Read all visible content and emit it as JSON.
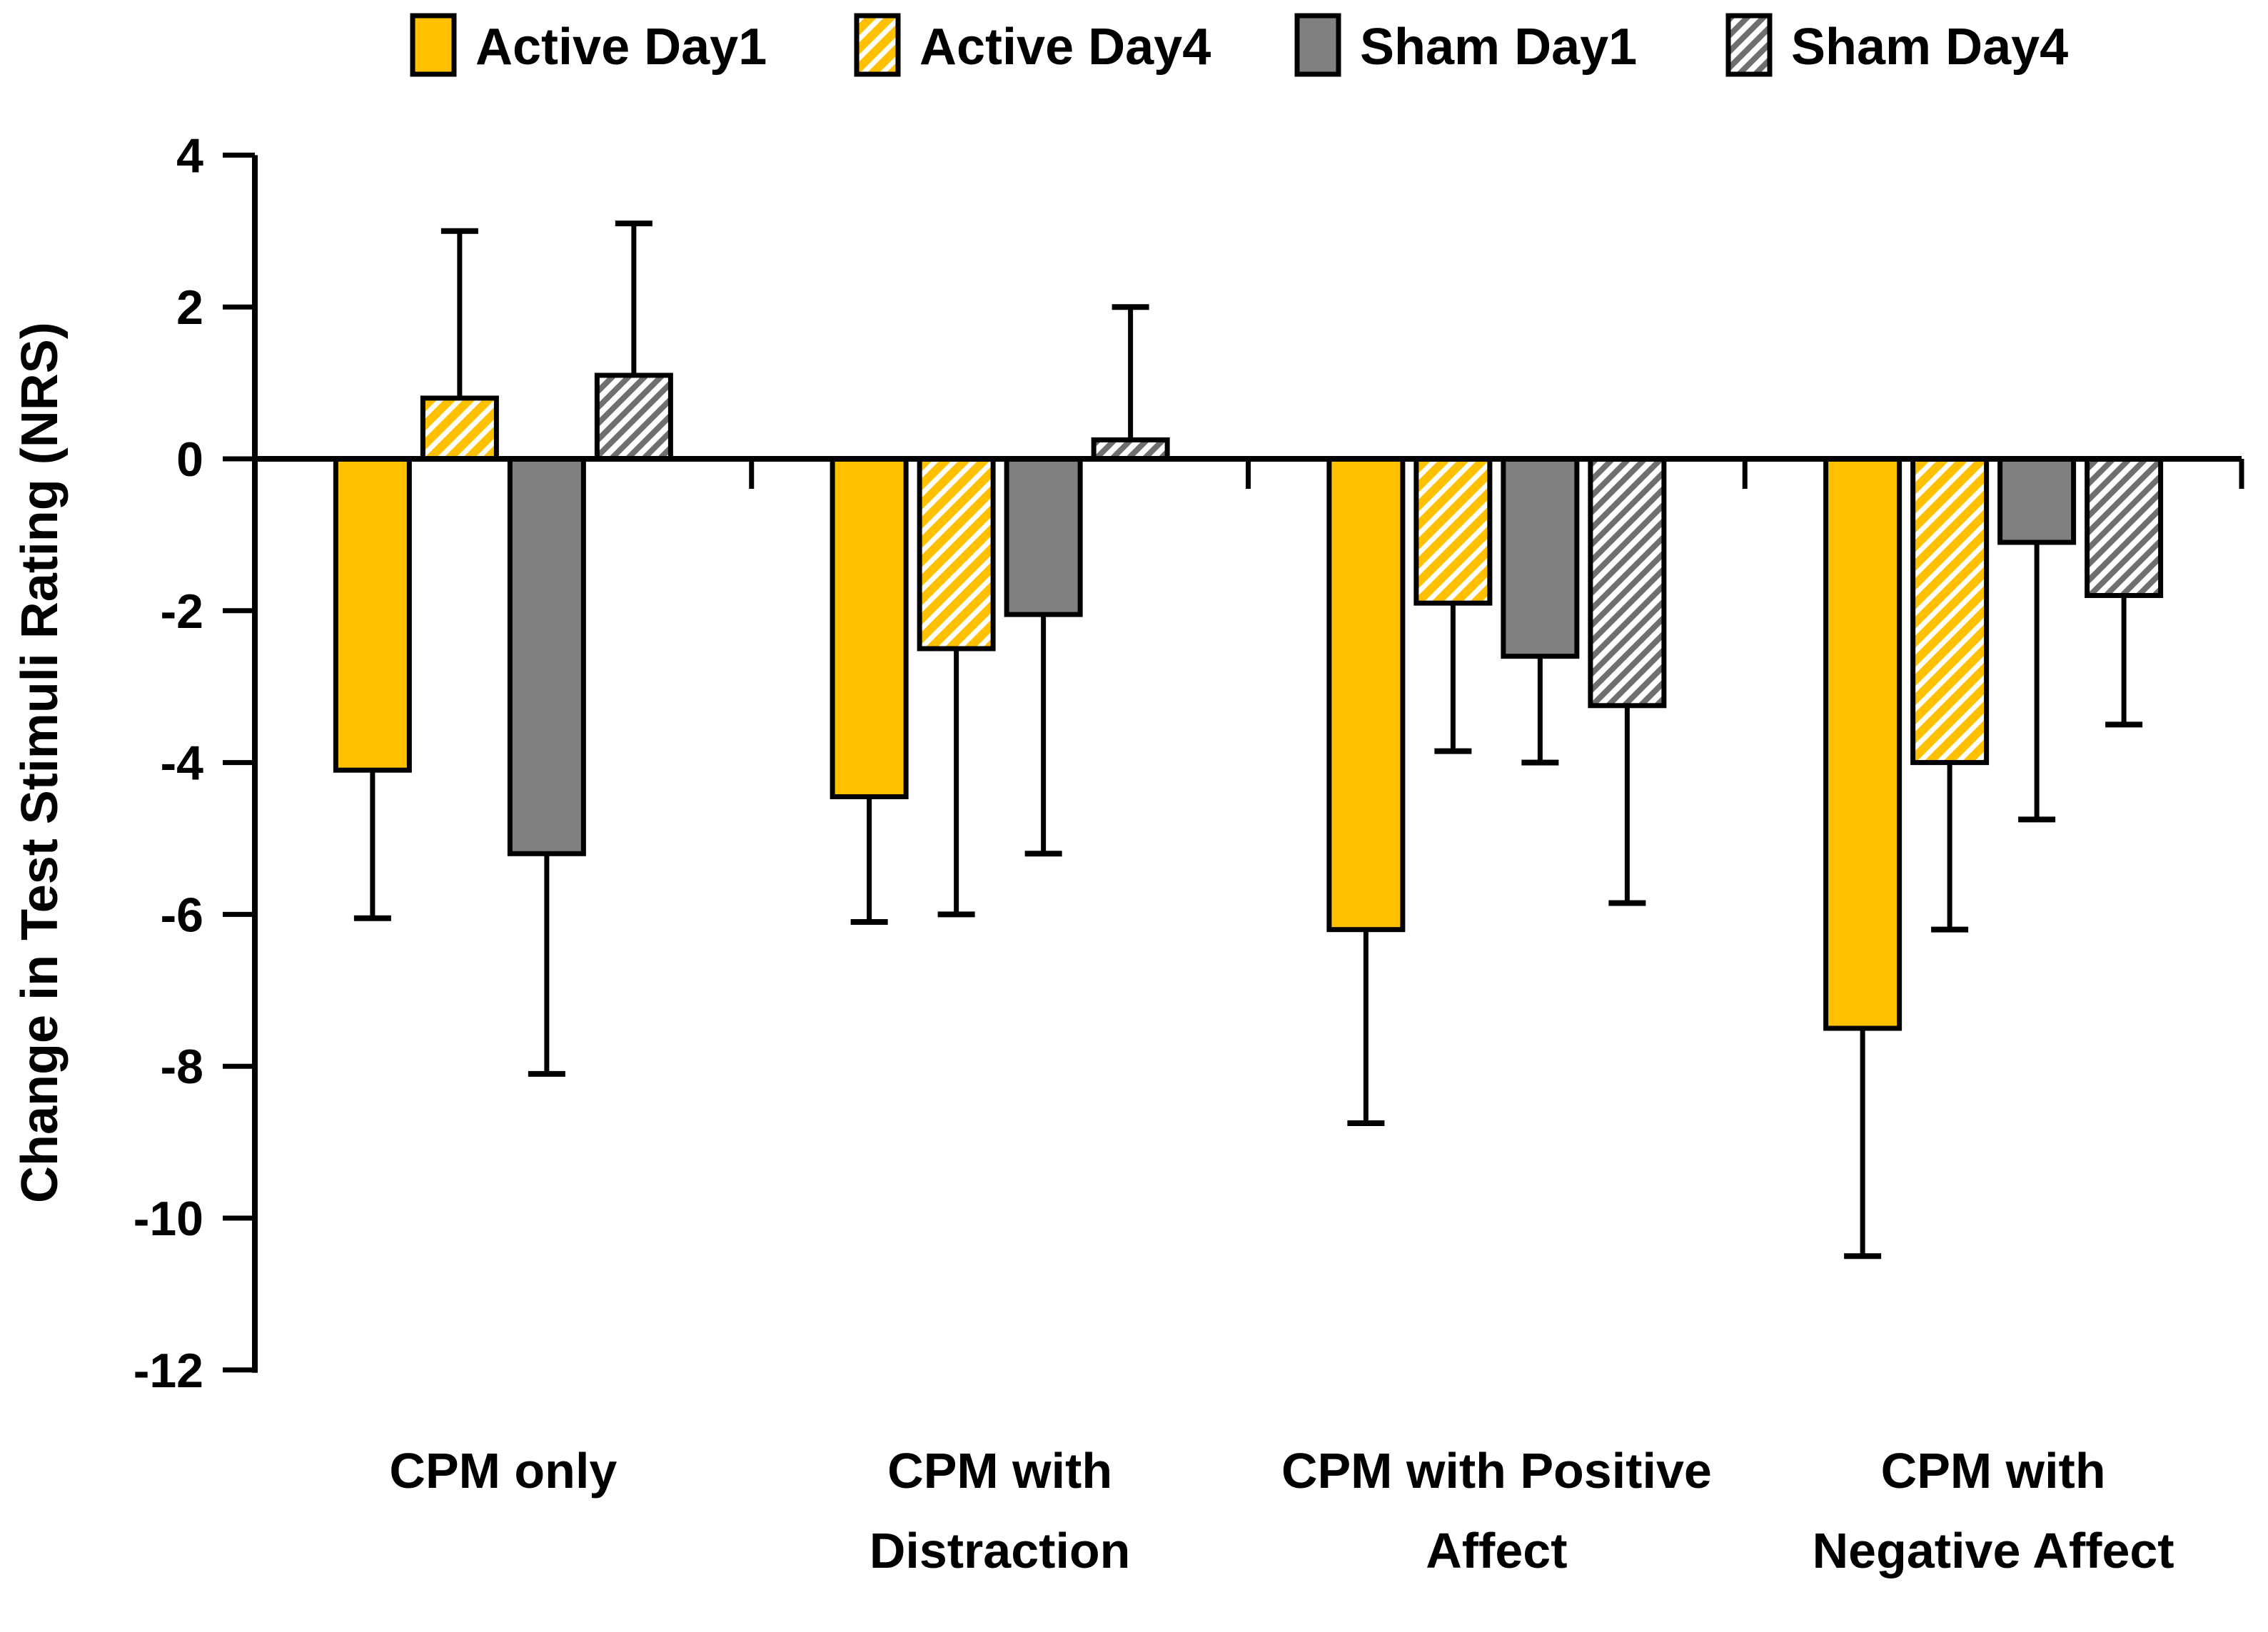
{
  "figure": {
    "background_color": "#ffffff",
    "axis_color": "#000000"
  },
  "chart_data": {
    "type": "bar",
    "title": "",
    "xlabel": "",
    "ylabel": "Change in Test Stimuli Rating (NRS)",
    "ylim": [
      -12,
      4
    ],
    "yticks": [
      4,
      2,
      0,
      -2,
      -4,
      -6,
      -8,
      -10,
      -12
    ],
    "grid": false,
    "legend_position": "top",
    "error_bars": "one-sided outward with caps",
    "categories": [
      "CPM only",
      "CPM with Distraction",
      "CPM with Positive Affect",
      "CPM with Negative Affect"
    ],
    "category_label_lines": [
      [
        "CPM only"
      ],
      [
        "CPM with",
        "Distraction"
      ],
      [
        "CPM with Positive",
        "Affect"
      ],
      [
        "CPM with",
        "Negative Affect"
      ]
    ],
    "series": [
      {
        "name": "Active Day1",
        "style": "solid",
        "color": "#FFC000",
        "values": [
          -4.1,
          -4.45,
          -6.2,
          -7.5
        ],
        "errors": [
          1.95,
          1.65,
          2.55,
          3.0
        ]
      },
      {
        "name": "Active Day4",
        "style": "hatch",
        "color": "#FFC000",
        "values": [
          0.8,
          -2.5,
          -1.9,
          -4.0
        ],
        "errors": [
          2.2,
          3.5,
          1.95,
          2.2
        ]
      },
      {
        "name": "Sham Day1",
        "style": "solid",
        "color": "#808080",
        "values": [
          -5.2,
          -2.05,
          -2.6,
          -1.1
        ],
        "errors": [
          2.9,
          3.15,
          1.4,
          3.65
        ]
      },
      {
        "name": "Sham Day4",
        "style": "hatch",
        "color": "#6F6F6F",
        "values": [
          1.1,
          0.25,
          -3.25,
          -1.8
        ],
        "errors": [
          2.0,
          1.75,
          2.6,
          1.7
        ]
      }
    ]
  }
}
